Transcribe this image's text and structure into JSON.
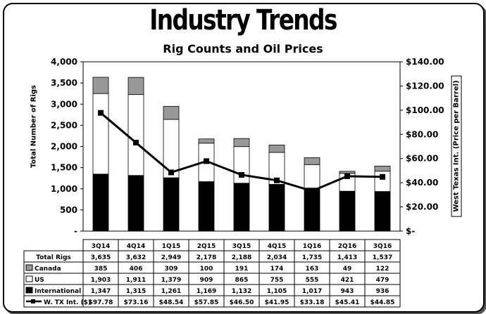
{
  "title": "Industry Trends",
  "subtitle": "Rig Counts and Oil Prices",
  "colors": {
    "canada": "#999999",
    "us": "#ffffff",
    "international": "#000000",
    "line": "#000000"
  },
  "chart_data": {
    "type": "bar",
    "stacked": true,
    "title": "Industry Trends",
    "subtitle": "Rig Counts and Oil Prices",
    "ylabel": "Total Number of Rigs",
    "y2label": "West Texas Int. (Price per Barrel)",
    "ylim": [
      0,
      4000
    ],
    "y2lim": [
      0,
      140
    ],
    "yticks": [
      "4,000",
      "3,500",
      "3,000",
      "2,500",
      "2,000",
      "1,500",
      "1,000",
      "500",
      "-"
    ],
    "y2ticks": [
      "$140.00",
      "$120.00",
      "$100.00",
      "$80.00",
      "$60.00",
      "$40.00",
      "$20.00",
      "$-"
    ],
    "categories": [
      "3Q14",
      "4Q14",
      "1Q15",
      "2Q15",
      "3Q15",
      "4Q15",
      "1Q16",
      "2Q16",
      "3Q16"
    ],
    "total_rigs": {
      "label": "Total Rigs",
      "values": [
        3635,
        3632,
        2949,
        2178,
        2188,
        2034,
        1735,
        1413,
        1537
      ],
      "display": [
        "3,635",
        "3,632",
        "2,949",
        "2,178",
        "2,188",
        "2,034",
        "1,735",
        "1,413",
        "1,537"
      ]
    },
    "series": [
      {
        "name": "Canada",
        "values": [
          385,
          406,
          309,
          100,
          191,
          174,
          163,
          49,
          122
        ],
        "display": [
          "385",
          "406",
          "309",
          "100",
          "191",
          "174",
          "163",
          "49",
          "122"
        ]
      },
      {
        "name": "US",
        "values": [
          1903,
          1911,
          1379,
          909,
          865,
          755,
          555,
          421,
          479
        ],
        "display": [
          "1,903",
          "1,911",
          "1,379",
          "909",
          "865",
          "755",
          "555",
          "421",
          "479"
        ]
      },
      {
        "name": "International",
        "values": [
          1347,
          1315,
          1261,
          1169,
          1132,
          1105,
          1017,
          943,
          936
        ],
        "display": [
          "1,347",
          "1,315",
          "1,261",
          "1,169",
          "1,132",
          "1,105",
          "1,017",
          "943",
          "936"
        ]
      },
      {
        "name": "W. TX Int. ($)",
        "axis": "right",
        "type": "line",
        "values": [
          97.78,
          73.16,
          48.54,
          57.85,
          46.5,
          41.95,
          33.18,
          45.41,
          44.85
        ],
        "display": [
          "$97.78",
          "$73.16",
          "$48.54",
          "$57.85",
          "$46.50",
          "$41.95",
          "$33.18",
          "$45.41",
          "$44.85"
        ]
      }
    ]
  }
}
